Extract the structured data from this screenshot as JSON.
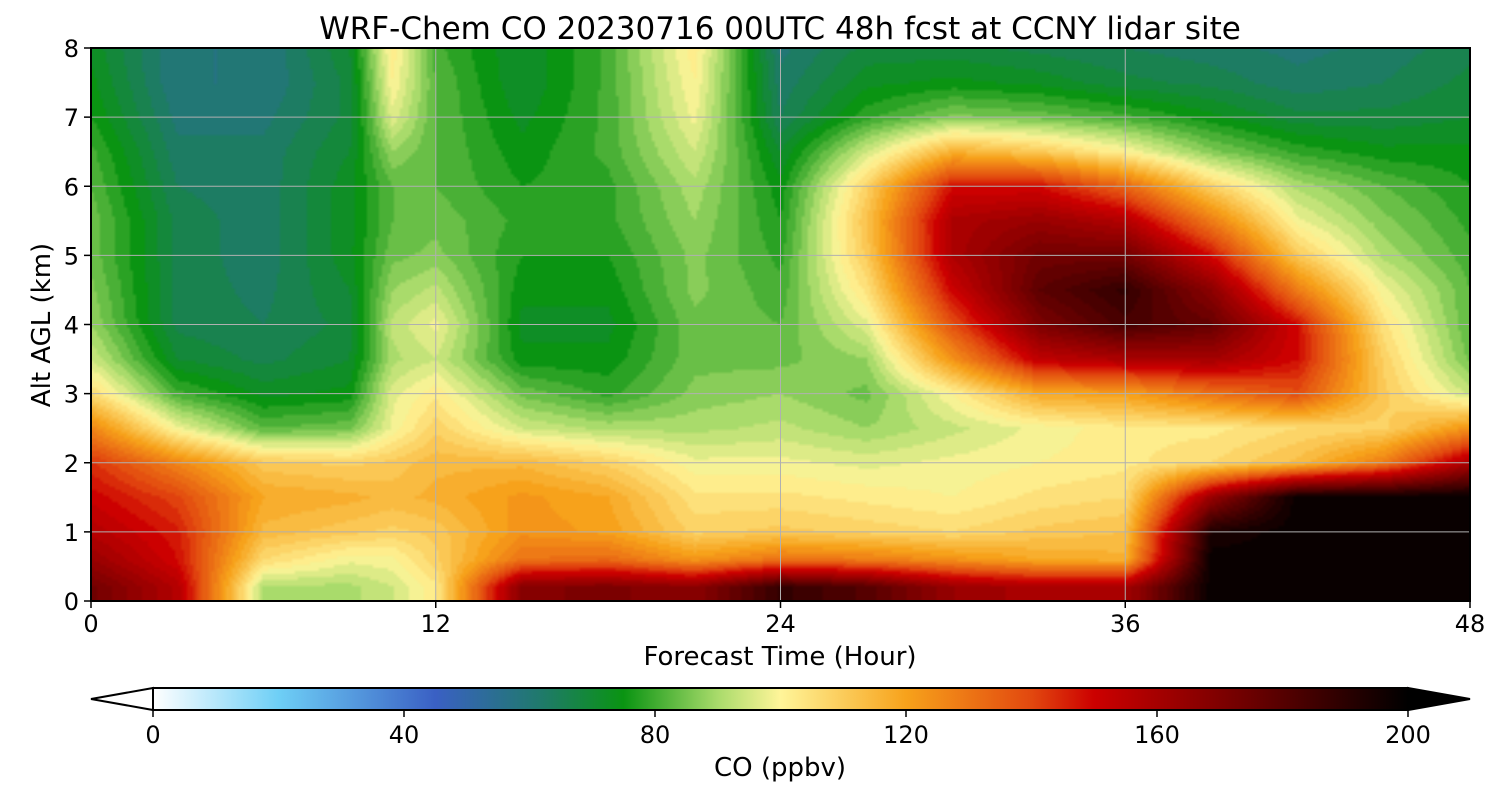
{
  "chart_data": {
    "type": "heatmap",
    "title": "WRF-Chem CO  20230716 00UTC 48h fcst at CCNY lidar site",
    "xlabel": "Forecast Time (Hour)",
    "ylabel": "Alt AGL (km)",
    "xlim": [
      0,
      48
    ],
    "ylim": [
      0,
      8
    ],
    "xticks": [
      0,
      12,
      24,
      36,
      48
    ],
    "yticks": [
      0,
      1,
      2,
      3,
      4,
      5,
      6,
      7,
      8
    ],
    "grid": true,
    "colorbar": {
      "label": "CO  (ppbv)",
      "range": [
        0,
        200
      ],
      "ticks": [
        0,
        40,
        80,
        120,
        160,
        200
      ],
      "extend": "both",
      "stops": [
        {
          "value": 0,
          "color": "#ffffff"
        },
        {
          "value": 20,
          "color": "#6ecff6"
        },
        {
          "value": 45,
          "color": "#3a60c4"
        },
        {
          "value": 62,
          "color": "#1f7a6a"
        },
        {
          "value": 75,
          "color": "#0a9412"
        },
        {
          "value": 90,
          "color": "#a9db6b"
        },
        {
          "value": 100,
          "color": "#fff599"
        },
        {
          "value": 120,
          "color": "#f7a21b"
        },
        {
          "value": 140,
          "color": "#e2480f"
        },
        {
          "value": 150,
          "color": "#cc0000"
        },
        {
          "value": 175,
          "color": "#6b0000"
        },
        {
          "value": 200,
          "color": "#000000"
        }
      ]
    },
    "x_hours": [
      0,
      3,
      6,
      9,
      10.5,
      12,
      15,
      18,
      21,
      24,
      27,
      30,
      33,
      36,
      39,
      42,
      45,
      48
    ],
    "y_km": [
      0.2,
      0.6,
      1.0,
      1.5,
      2.0,
      2.5,
      3.0,
      3.5,
      4.0,
      4.5,
      5.0,
      5.5,
      6.0,
      6.5,
      7.0,
      7.5,
      8.0
    ],
    "values": [
      [
        175,
        158,
        92,
        92,
        96,
        104,
        170,
        172,
        168,
        190,
        182,
        165,
        160,
        162,
        200,
        200,
        200,
        200
      ],
      [
        165,
        150,
        108,
        100,
        101,
        110,
        132,
        134,
        124,
        132,
        130,
        125,
        120,
        118,
        200,
        200,
        200,
        200
      ],
      [
        158,
        148,
        116,
        112,
        110,
        112,
        125,
        122,
        110,
        112,
        110,
        108,
        112,
        114,
        195,
        200,
        200,
        200
      ],
      [
        152,
        142,
        120,
        118,
        116,
        118,
        124,
        120,
        106,
        106,
        104,
        102,
        106,
        108,
        165,
        200,
        200,
        200
      ],
      [
        145,
        128,
        112,
        110,
        112,
        116,
        116,
        110,
        100,
        100,
        98,
        100,
        102,
        104,
        108,
        115,
        130,
        160
      ],
      [
        128,
        100,
        84,
        86,
        100,
        110,
        96,
        92,
        92,
        94,
        90,
        95,
        100,
        104,
        104,
        108,
        110,
        125
      ],
      [
        108,
        82,
        74,
        76,
        98,
        104,
        86,
        80,
        88,
        90,
        86,
        102,
        120,
        122,
        132,
        140,
        112,
        95
      ],
      [
        96,
        72,
        68,
        72,
        92,
        96,
        76,
        76,
        86,
        86,
        90,
        125,
        155,
        160,
        162,
        150,
        110,
        86
      ],
      [
        90,
        68,
        66,
        70,
        94,
        100,
        74,
        74,
        86,
        84,
        98,
        140,
        172,
        185,
        178,
        150,
        106,
        84
      ],
      [
        88,
        68,
        65,
        72,
        90,
        94,
        76,
        76,
        88,
        82,
        106,
        152,
        180,
        190,
        168,
        130,
        100,
        84
      ],
      [
        86,
        68,
        64,
        74,
        86,
        88,
        78,
        78,
        88,
        80,
        112,
        160,
        175,
        175,
        150,
        112,
        92,
        82
      ],
      [
        86,
        68,
        64,
        74,
        84,
        86,
        80,
        80,
        90,
        78,
        114,
        160,
        165,
        158,
        130,
        100,
        88,
        80
      ],
      [
        84,
        66,
        64,
        74,
        84,
        84,
        78,
        80,
        92,
        76,
        110,
        150,
        150,
        135,
        110,
        92,
        84,
        78
      ],
      [
        82,
        64,
        64,
        72,
        90,
        84,
        76,
        82,
        96,
        72,
        96,
        118,
        112,
        102,
        88,
        80,
        76,
        76
      ],
      [
        78,
        62,
        62,
        70,
        98,
        84,
        74,
        82,
        100,
        66,
        80,
        88,
        86,
        82,
        76,
        70,
        70,
        72
      ],
      [
        76,
        60,
        60,
        70,
        102,
        84,
        72,
        82,
        102,
        64,
        74,
        76,
        74,
        70,
        68,
        64,
        66,
        70
      ],
      [
        74,
        60,
        60,
        72,
        104,
        82,
        72,
        82,
        104,
        62,
        70,
        70,
        68,
        66,
        64,
        62,
        64,
        68
      ]
    ]
  }
}
